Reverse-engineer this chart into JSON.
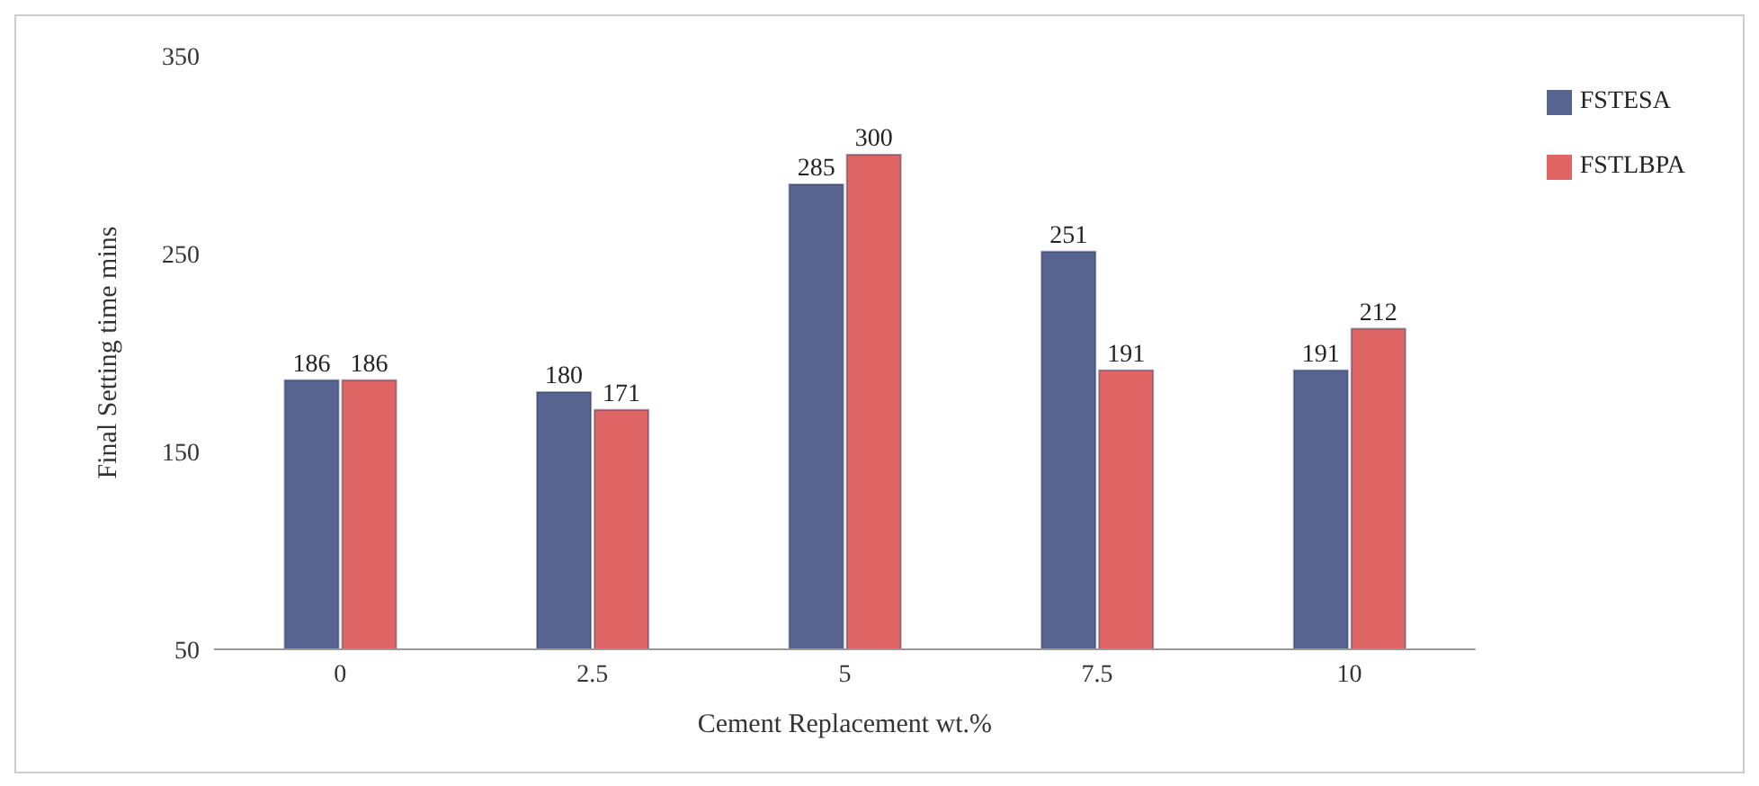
{
  "chart_data": {
    "type": "bar",
    "xlabel": "Cement Replacement  wt.%",
    "ylabel": "Final Setting time mins",
    "categories": [
      "0",
      "2.5",
      "5",
      "7.5",
      "10"
    ],
    "series": [
      {
        "name": "FSTESA",
        "color": "#56648f",
        "values": [
          186,
          180,
          285,
          251,
          191
        ]
      },
      {
        "name": "FSTLBPA",
        "color": "#e06666",
        "values": [
          186,
          171,
          300,
          191,
          212
        ]
      }
    ],
    "ylim": [
      50,
      350
    ],
    "yticks": [
      50,
      150,
      250,
      350
    ],
    "grid": false,
    "legend": "top right",
    "data_labels": true
  }
}
